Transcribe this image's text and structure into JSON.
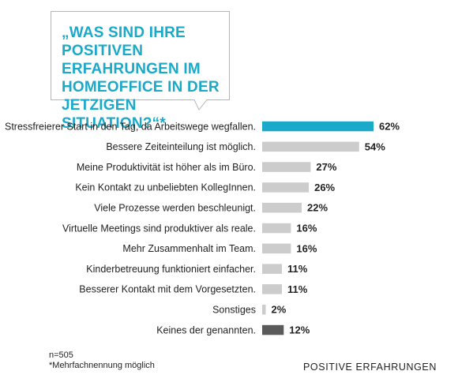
{
  "title": "„WAS SIND IHRE POSITIVEN ERFAHRUNGEN IM HOMEOFFICE IN DER JETZIGEN SITUATION?“*",
  "chart_data": {
    "type": "bar",
    "orientation": "horizontal",
    "title": "„WAS SIND IHRE POSITIVEN ERFAHRUNGEN IM HOMEOFFICE IN DER JETZIGEN SITUATION?“*",
    "xlabel": "",
    "ylabel": "",
    "xlim": [
      0,
      62
    ],
    "grid": false,
    "legend": "none",
    "unit": "%",
    "categories": [
      "Stressfreierer Start in den Tag, da Arbeitswege wegfallen.",
      "Bessere Zeiteinteilung ist möglich.",
      "Meine Produktivität ist höher als im Büro.",
      "Kein Kontakt zu unbeliebten KollegInnen.",
      "Viele Prozesse werden beschleunigt.",
      "Virtuelle Meetings sind produktiver als reale.",
      "Mehr Zusammenhalt im Team.",
      "Kinderbetreuung funktioniert einfacher.",
      "Besserer Kontakt mit dem Vorgesetzten.",
      "Sonstiges",
      "Keines der genannten."
    ],
    "values": [
      62,
      54,
      27,
      26,
      22,
      16,
      16,
      11,
      11,
      2,
      12
    ],
    "value_labels": [
      "62%",
      "54%",
      "27%",
      "26%",
      "22%",
      "16%",
      "16%",
      "11%",
      "11%",
      "2%",
      "12%"
    ],
    "bar_colors": [
      "#1aa9c9",
      "#cccccc",
      "#cccccc",
      "#cccccc",
      "#cccccc",
      "#cccccc",
      "#cccccc",
      "#cccccc",
      "#cccccc",
      "#cccccc",
      "#5a5a5a"
    ]
  },
  "footnote": {
    "sample": "n=505",
    "note": "*Mehrfachnennung möglich"
  },
  "section_label": "POSITIVE ERFAHRUNGEN",
  "colors": {
    "accent": "#1aa9c9",
    "bar_default": "#cccccc",
    "bar_none": "#5a5a5a",
    "bubble_border": "#b5b5b5"
  }
}
